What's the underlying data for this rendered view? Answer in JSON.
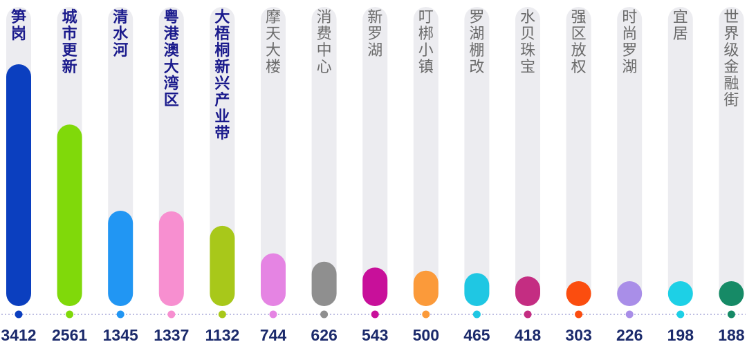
{
  "chart_data": {
    "type": "bar",
    "categories": [
      "笋岗",
      "城市更新",
      "清水河",
      "粤港澳大湾区",
      "大梧桐新兴产业带",
      "摩天大楼",
      "消费中心",
      "新罗湖",
      "叮梆小镇",
      "罗湖棚改",
      "水贝珠宝",
      "强区放权",
      "时尚罗湖",
      "宜居",
      "世界级金融街"
    ],
    "values": [
      3412,
      2561,
      1345,
      1337,
      1132,
      744,
      626,
      543,
      500,
      465,
      418,
      303,
      226,
      198,
      188
    ],
    "title": "",
    "xlabel": "",
    "ylabel": "",
    "grid": false,
    "legend": "none",
    "highlighted_categories": [
      "笋岗",
      "城市更新",
      "清水河",
      "粤港澳大湾区",
      "大梧桐新兴产业带"
    ],
    "colors": {
      "bars": [
        "#0b3fbf",
        "#80d90a",
        "#2196f3",
        "#f78fd0",
        "#a8c81a",
        "#e584e3",
        "#8f8f8f",
        "#c8109a",
        "#fb9a3a",
        "#1fc7e3",
        "#c42d82",
        "#fb4d0f",
        "#a98ee8",
        "#1dd0e6",
        "#168a66"
      ],
      "track": "#ececf0",
      "highlight_text": "#1a1a8c",
      "normal_text": "#6b6b6b",
      "value_text": "#1b2a6b",
      "baseline": "#a8a8d8"
    }
  }
}
